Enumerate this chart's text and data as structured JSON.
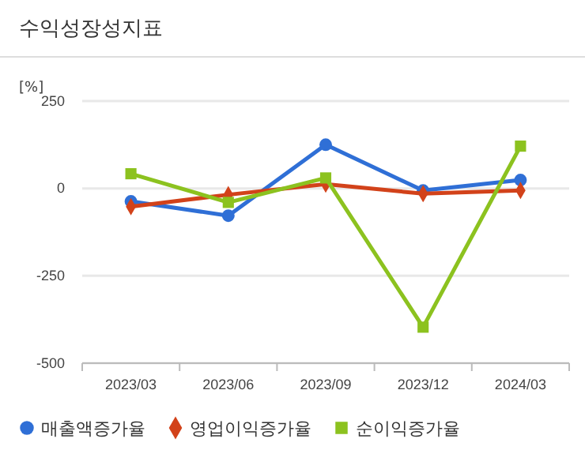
{
  "chart_data": {
    "type": "line",
    "title": "수익성장성지표",
    "ylabel": "[%]",
    "categories": [
      "2023/03",
      "2023/06",
      "2023/09",
      "2023/12",
      "2024/03"
    ],
    "series": [
      {
        "name": "매출액증가율",
        "color": "#2f6fd6",
        "marker": "circle",
        "values": [
          -37,
          -78,
          125,
          -6,
          24
        ]
      },
      {
        "name": "영업이익증가율",
        "color": "#d2421a",
        "marker": "diamond",
        "values": [
          -52,
          -18,
          12,
          -15,
          -6
        ]
      },
      {
        "name": "순이익증가율",
        "color": "#8cc21f",
        "marker": "square",
        "values": [
          42,
          -40,
          30,
          -397,
          121
        ]
      }
    ],
    "ylim": [
      -500,
      250
    ],
    "yticks": [
      -500,
      -250,
      0,
      250
    ],
    "grid": "y",
    "legend": "bottom",
    "line_style": "solid"
  }
}
